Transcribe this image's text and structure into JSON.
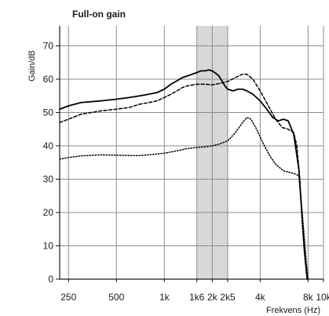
{
  "chart_data": {
    "type": "line",
    "title": "Full-on gain",
    "ylabel": "Gain/dB",
    "xlabel": "Frekvens (Hz)",
    "xscale": "log",
    "xlim": [
      220,
      10000
    ],
    "ylim": [
      0,
      76
    ],
    "grid": true,
    "x_ticks": [
      {
        "value": 250,
        "label": "250"
      },
      {
        "value": 500,
        "label": "500"
      },
      {
        "value": 1000,
        "label": "1k"
      },
      {
        "value": 1600,
        "label": "1k6"
      },
      {
        "value": 2000,
        "label": "2k"
      },
      {
        "value": 2500,
        "label": "2k5"
      },
      {
        "value": 4000,
        "label": "4k"
      },
      {
        "value": 8000,
        "label": "8k"
      },
      {
        "value": 10000,
        "label": "10k"
      }
    ],
    "y_ticks": [
      {
        "value": 0,
        "label": "0"
      },
      {
        "value": 10,
        "label": "10"
      },
      {
        "value": 20,
        "label": "20"
      },
      {
        "value": 30,
        "label": "30"
      },
      {
        "value": 40,
        "label": "40"
      },
      {
        "value": 50,
        "label": "50"
      },
      {
        "value": 60,
        "label": "60"
      },
      {
        "value": 70,
        "label": "70"
      }
    ],
    "highlight_band": {
      "x_from": 1600,
      "x_to": 2500,
      "color": "#d8d8d8"
    },
    "series": [
      {
        "style": "solid",
        "color": "#000000",
        "points": [
          [
            220,
            51
          ],
          [
            250,
            52
          ],
          [
            300,
            53
          ],
          [
            400,
            53.5
          ],
          [
            500,
            54
          ],
          [
            600,
            54.5
          ],
          [
            700,
            55
          ],
          [
            800,
            55.5
          ],
          [
            900,
            56
          ],
          [
            1000,
            57
          ],
          [
            1100,
            58.5
          ],
          [
            1200,
            59.5
          ],
          [
            1300,
            60.5
          ],
          [
            1400,
            61
          ],
          [
            1500,
            61.5
          ],
          [
            1600,
            62
          ],
          [
            1700,
            62.5
          ],
          [
            1800,
            62.5
          ],
          [
            1900,
            62.8
          ],
          [
            2000,
            62.5
          ],
          [
            2100,
            61.8
          ],
          [
            2200,
            61
          ],
          [
            2300,
            59.5
          ],
          [
            2400,
            58
          ],
          [
            2500,
            57
          ],
          [
            2700,
            56.5
          ],
          [
            2900,
            57
          ],
          [
            3100,
            57
          ],
          [
            3300,
            56.5
          ],
          [
            3600,
            55.5
          ],
          [
            4000,
            53.5
          ],
          [
            4400,
            51
          ],
          [
            4800,
            48.5
          ],
          [
            5200,
            47.5
          ],
          [
            5600,
            48
          ],
          [
            6000,
            47.5
          ],
          [
            6500,
            43.5
          ],
          [
            7000,
            33
          ],
          [
            7300,
            20
          ],
          [
            7600,
            8
          ],
          [
            7900,
            0
          ]
        ]
      },
      {
        "style": "dashed",
        "color": "#000000",
        "points": [
          [
            220,
            47
          ],
          [
            250,
            48
          ],
          [
            300,
            49.5
          ],
          [
            400,
            50.5
          ],
          [
            500,
            51
          ],
          [
            600,
            51.5
          ],
          [
            700,
            52.5
          ],
          [
            800,
            53
          ],
          [
            900,
            53.5
          ],
          [
            1000,
            54.5
          ],
          [
            1100,
            55.5
          ],
          [
            1200,
            56.5
          ],
          [
            1300,
            57.5
          ],
          [
            1400,
            58
          ],
          [
            1600,
            58.5
          ],
          [
            1800,
            58.5
          ],
          [
            2000,
            58.3
          ],
          [
            2200,
            58.7
          ],
          [
            2500,
            59.3
          ],
          [
            2800,
            60.5
          ],
          [
            3100,
            61.5
          ],
          [
            3300,
            61.5
          ],
          [
            3600,
            60
          ],
          [
            4000,
            56.5
          ],
          [
            4500,
            52
          ],
          [
            5000,
            48
          ],
          [
            5500,
            45.5
          ],
          [
            6000,
            45
          ],
          [
            6500,
            44
          ],
          [
            6800,
            40
          ],
          [
            7100,
            30
          ],
          [
            7400,
            15
          ],
          [
            7700,
            5
          ],
          [
            7900,
            0
          ]
        ]
      },
      {
        "style": "dotted",
        "color": "#000000",
        "points": [
          [
            220,
            36
          ],
          [
            250,
            36.5
          ],
          [
            300,
            37
          ],
          [
            400,
            37.3
          ],
          [
            500,
            37.2
          ],
          [
            600,
            37.1
          ],
          [
            700,
            37.1
          ],
          [
            800,
            37.3
          ],
          [
            1000,
            37.8
          ],
          [
            1200,
            38.5
          ],
          [
            1400,
            39.2
          ],
          [
            1600,
            39.5
          ],
          [
            1800,
            39.7
          ],
          [
            2000,
            40
          ],
          [
            2200,
            40.5
          ],
          [
            2500,
            41.5
          ],
          [
            2800,
            44
          ],
          [
            3100,
            47
          ],
          [
            3300,
            48.5
          ],
          [
            3500,
            48
          ],
          [
            3800,
            45
          ],
          [
            4200,
            40.5
          ],
          [
            4600,
            37
          ],
          [
            5000,
            34.5
          ],
          [
            5600,
            32.5
          ],
          [
            6200,
            32
          ],
          [
            6700,
            31.5
          ],
          [
            7000,
            31
          ],
          [
            7200,
            25
          ],
          [
            7500,
            15
          ],
          [
            7800,
            5
          ],
          [
            8000,
            0
          ]
        ]
      }
    ]
  }
}
